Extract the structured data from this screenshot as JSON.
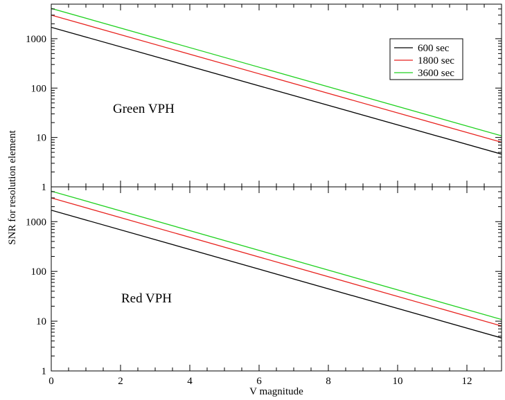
{
  "chart_data": {
    "type": "line",
    "scale": "log-y",
    "xlabel": "V magnitude",
    "ylabel": "SNR for resolution element",
    "xlim": [
      0,
      13
    ],
    "x_ticks": [
      0,
      2,
      4,
      6,
      8,
      10,
      12
    ],
    "x_tick_labels": [
      "0",
      "2",
      "4",
      "6",
      "8",
      "10",
      "12"
    ],
    "legend": {
      "placement": "top-right of upper panel",
      "entries": [
        {
          "name": "600 sec",
          "color": "#000000"
        },
        {
          "name": "1800 sec",
          "color": "#e8211d"
        },
        {
          "name": "3600 sec",
          "color": "#1ed11e"
        }
      ]
    },
    "panels": [
      {
        "label": "Green VPH",
        "ylim": [
          1,
          5000
        ],
        "y_ticks": [
          1,
          10,
          100,
          1000
        ],
        "y_tick_labels": [
          "1",
          "10",
          "100",
          "1000"
        ],
        "series": [
          {
            "name": "600 sec",
            "color": "#000000",
            "x": [
              0,
              13
            ],
            "y": [
              1700,
              4.6
            ]
          },
          {
            "name": "1800 sec",
            "color": "#e8211d",
            "x": [
              0,
              13
            ],
            "y": [
              3000,
              8
            ]
          },
          {
            "name": "3600 sec",
            "color": "#1ed11e",
            "x": [
              0,
              13
            ],
            "y": [
              4100,
              10.8
            ]
          }
        ]
      },
      {
        "label": "Red VPH",
        "ylim": [
          1,
          5000
        ],
        "y_ticks": [
          1,
          10,
          100,
          1000
        ],
        "y_tick_labels": [
          "1",
          "10",
          "100",
          "1000"
        ],
        "series": [
          {
            "name": "600 sec",
            "color": "#000000",
            "x": [
              0,
              13
            ],
            "y": [
              1700,
              4.6
            ]
          },
          {
            "name": "1800 sec",
            "color": "#e8211d",
            "x": [
              0,
              13
            ],
            "y": [
              3000,
              8
            ]
          },
          {
            "name": "3600 sec",
            "color": "#1ed11e",
            "x": [
              0,
              13
            ],
            "y": [
              4100,
              10.8
            ]
          }
        ]
      }
    ]
  }
}
